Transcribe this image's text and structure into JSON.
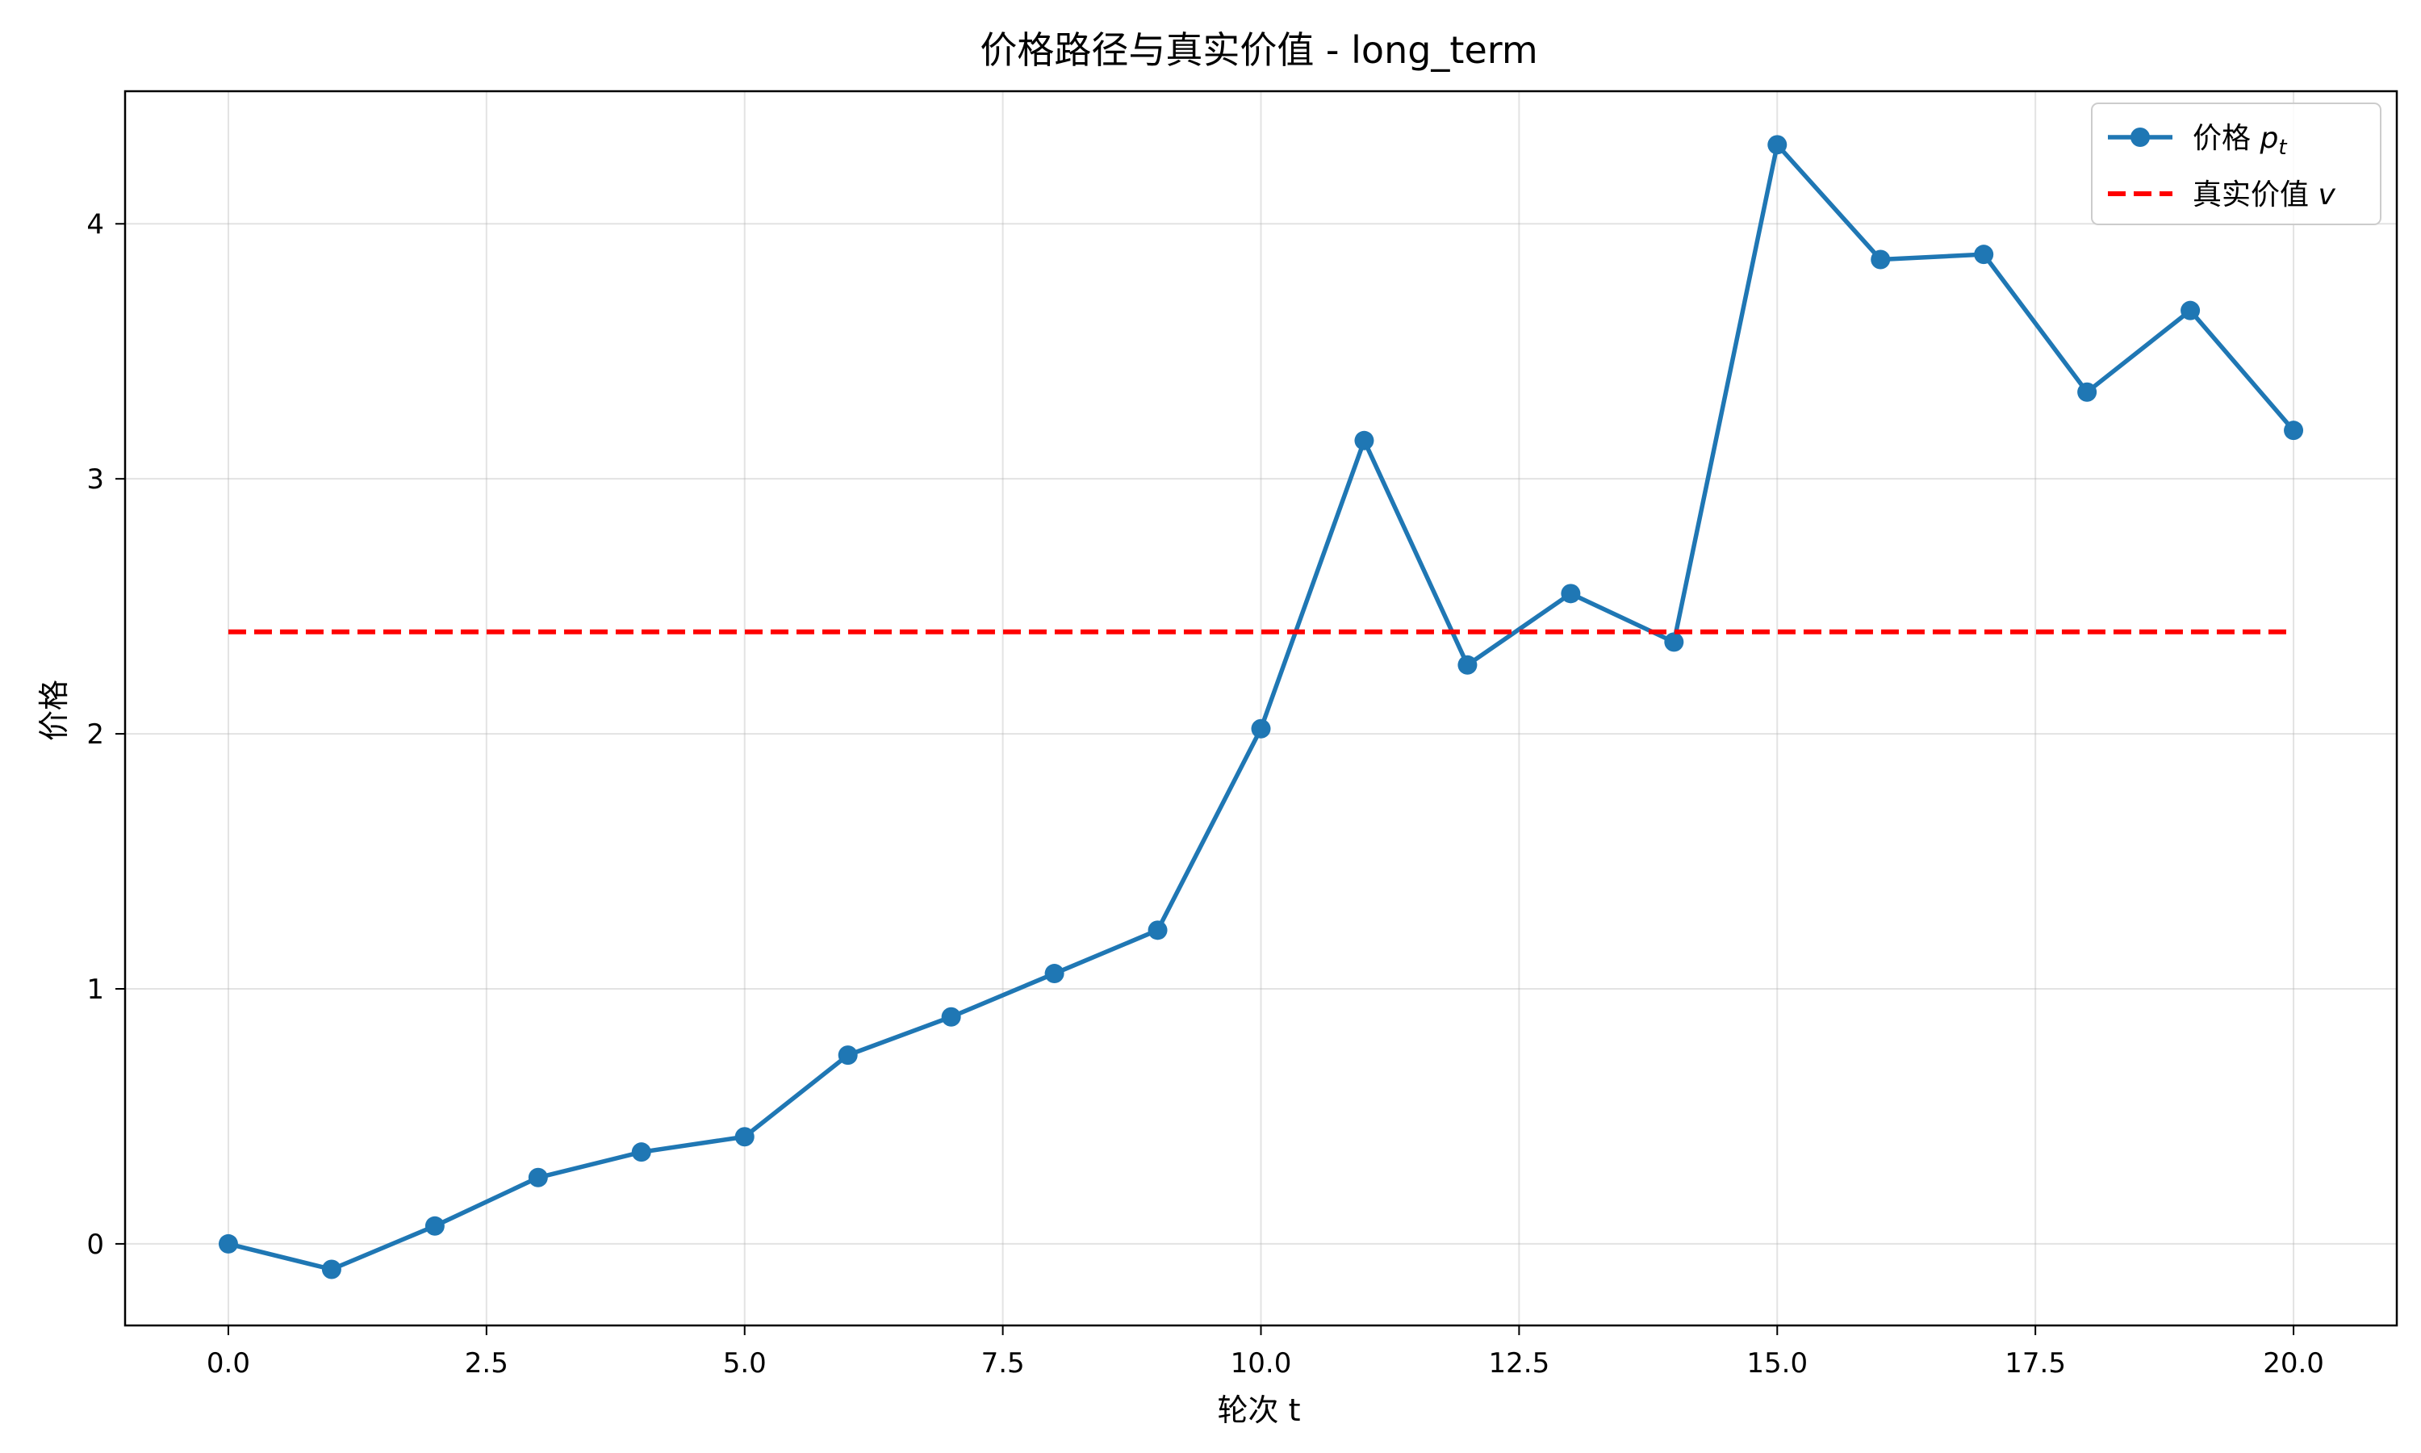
{
  "chart_data": {
    "type": "line",
    "title": "价格路径与真实价值 - long_term",
    "xlabel": "轮次 t",
    "ylabel": "价格",
    "xlim": [
      -1.0,
      21.0
    ],
    "ylim": [
      -0.32,
      4.52
    ],
    "xticks": [
      0.0,
      2.5,
      5.0,
      7.5,
      10.0,
      12.5,
      15.0,
      17.5,
      20.0
    ],
    "xtick_labels": [
      "0.0",
      "2.5",
      "5.0",
      "7.5",
      "10.0",
      "12.5",
      "15.0",
      "17.5",
      "20.0"
    ],
    "yticks": [
      0,
      1,
      2,
      3,
      4
    ],
    "ytick_labels": [
      "0",
      "1",
      "2",
      "3",
      "4"
    ],
    "grid": true,
    "legend_position": "top-right",
    "series": [
      {
        "name": "价格 p_t",
        "legend_main": "价格 ",
        "legend_var": "p",
        "legend_sub": "t",
        "color": "#1f77b4",
        "style": "solid",
        "marker": "circle",
        "x": [
          0,
          1,
          2,
          3,
          4,
          5,
          6,
          7,
          8,
          9,
          10,
          11,
          12,
          13,
          14,
          15,
          16,
          17,
          18,
          19,
          20
        ],
        "y": [
          0.0,
          -0.1,
          0.07,
          0.26,
          0.36,
          0.42,
          0.74,
          0.89,
          1.06,
          1.23,
          2.02,
          3.15,
          2.27,
          2.55,
          2.36,
          4.31,
          3.86,
          3.88,
          3.34,
          3.66,
          3.19
        ]
      },
      {
        "name": "真实价值 v",
        "legend_main": "真实价值 ",
        "legend_var": "v",
        "legend_sub": "",
        "color": "#ff0000",
        "style": "dashed",
        "marker": "none",
        "x": [
          0,
          20
        ],
        "y": [
          2.4,
          2.4
        ]
      }
    ]
  }
}
